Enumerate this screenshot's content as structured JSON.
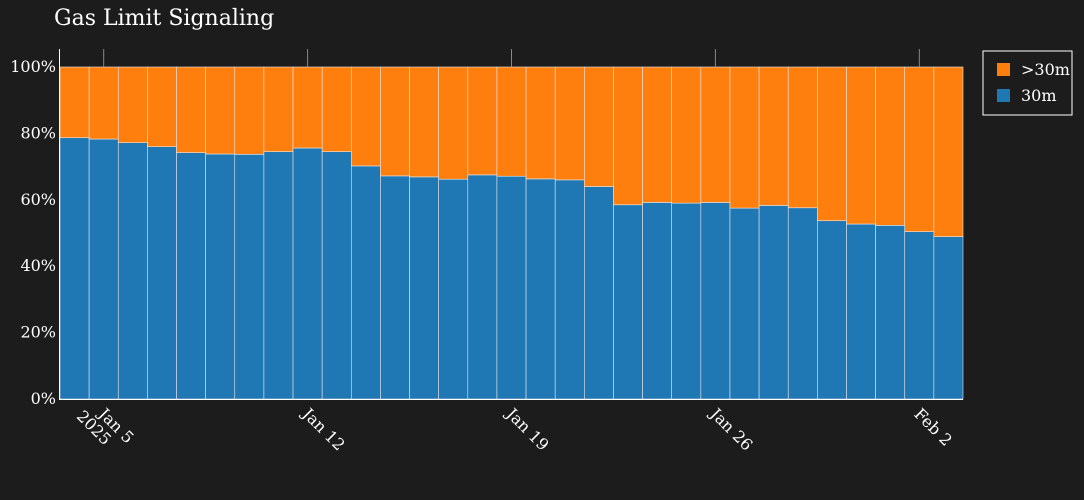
{
  "chart_data": {
    "type": "bar",
    "stacked": true,
    "normalized": true,
    "title": "Gas Limit Signaling",
    "xlabel": "",
    "ylabel": "",
    "x": [
      "2025-01-04",
      "2025-01-05",
      "2025-01-06",
      "2025-01-07",
      "2025-01-08",
      "2025-01-09",
      "2025-01-10",
      "2025-01-11",
      "2025-01-12",
      "2025-01-13",
      "2025-01-14",
      "2025-01-15",
      "2025-01-16",
      "2025-01-17",
      "2025-01-18",
      "2025-01-19",
      "2025-01-20",
      "2025-01-21",
      "2025-01-22",
      "2025-01-23",
      "2025-01-24",
      "2025-01-25",
      "2025-01-26",
      "2025-01-27",
      "2025-01-28",
      "2025-01-29",
      "2025-01-30",
      "2025-01-31",
      "2025-02-01",
      "2025-02-02",
      "2025-02-03"
    ],
    "x_ticks": [
      {
        "date": "2025-01-05",
        "label": "Jan 5",
        "sublabel": "2025"
      },
      {
        "date": "2025-01-12",
        "label": "Jan 12",
        "sublabel": ""
      },
      {
        "date": "2025-01-19",
        "label": "Jan 19",
        "sublabel": ""
      },
      {
        "date": "2025-01-26",
        "label": "Jan 26",
        "sublabel": ""
      },
      {
        "date": "2025-02-02",
        "label": "Feb 2",
        "sublabel": ""
      }
    ],
    "y_ticks": [
      "0%",
      "20%",
      "40%",
      "60%",
      "80%",
      "100%"
    ],
    "ylim": [
      0,
      100
    ],
    "grid": false,
    "legend_position": "top-right",
    "series": [
      {
        "name": "30m",
        "color": "#1f77b4",
        "values": [
          78.7,
          78.3,
          77.2,
          76.0,
          74.2,
          73.8,
          73.7,
          74.5,
          75.6,
          74.5,
          70.2,
          67.2,
          66.9,
          66.2,
          67.5,
          67.1,
          66.3,
          66.0,
          64.0,
          58.5,
          59.2,
          59.0,
          59.2,
          57.5,
          58.3,
          57.6,
          53.7,
          52.7,
          52.3,
          50.4,
          48.9
        ]
      },
      {
        "name": ">30m",
        "color": "#ff7f0e",
        "values": [
          21.3,
          21.7,
          22.8,
          24.0,
          25.8,
          26.2,
          26.3,
          25.5,
          24.4,
          25.5,
          29.8,
          32.8,
          33.1,
          33.8,
          32.5,
          32.9,
          33.7,
          34.0,
          36.0,
          41.5,
          40.8,
          41.0,
          40.8,
          42.5,
          41.7,
          42.4,
          46.3,
          47.3,
          47.7,
          49.6,
          51.1
        ]
      }
    ],
    "legend_order": [
      ">30m",
      "30m"
    ]
  }
}
